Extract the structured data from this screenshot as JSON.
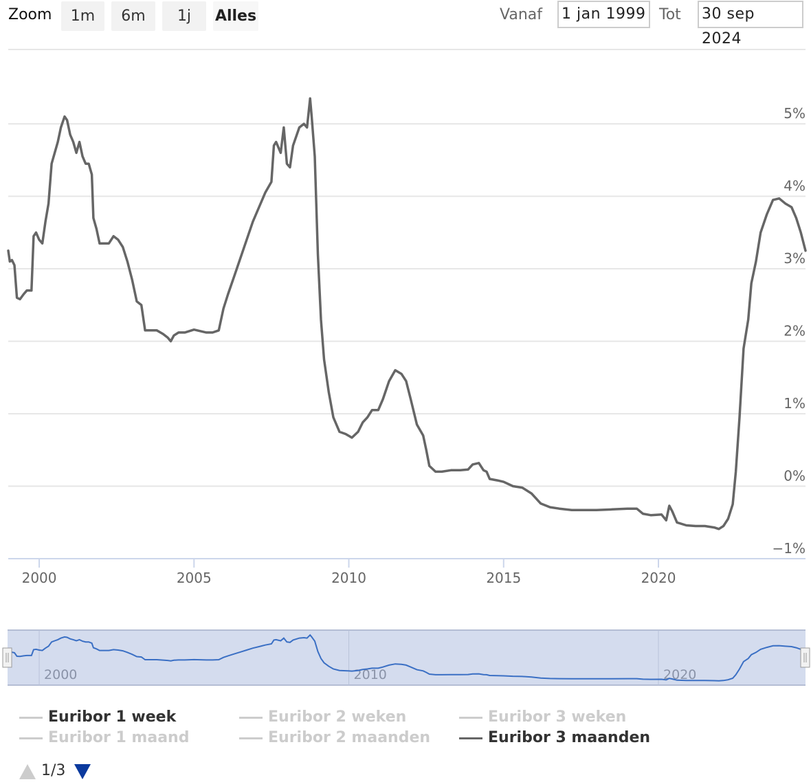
{
  "toolbar": {
    "zoom_label": "Zoom",
    "zoom_buttons": [
      "1m",
      "6m",
      "1j",
      "Alles"
    ],
    "active_zoom": "Alles",
    "from_label": "Vanaf",
    "from_value": "1 jan 1999",
    "to_label": "Tot",
    "to_value": "30 sep 2024"
  },
  "chart_data": {
    "type": "line",
    "series": [
      {
        "name": "Euribor 3 maanden",
        "color": "#666666",
        "points": [
          [
            1999.0,
            3.25
          ],
          [
            1999.05,
            3.1
          ],
          [
            1999.12,
            3.12
          ],
          [
            1999.2,
            3.05
          ],
          [
            1999.28,
            2.6
          ],
          [
            1999.38,
            2.58
          ],
          [
            1999.5,
            2.65
          ],
          [
            1999.6,
            2.7
          ],
          [
            1999.75,
            2.7
          ],
          [
            1999.82,
            3.45
          ],
          [
            1999.9,
            3.5
          ],
          [
            2000.0,
            3.4
          ],
          [
            2000.1,
            3.35
          ],
          [
            2000.2,
            3.65
          ],
          [
            2000.3,
            3.9
          ],
          [
            2000.4,
            4.45
          ],
          [
            2000.5,
            4.6
          ],
          [
            2000.6,
            4.75
          ],
          [
            2000.7,
            4.95
          ],
          [
            2000.82,
            5.1
          ],
          [
            2000.9,
            5.05
          ],
          [
            2001.0,
            4.85
          ],
          [
            2001.1,
            4.75
          ],
          [
            2001.2,
            4.6
          ],
          [
            2001.3,
            4.75
          ],
          [
            2001.4,
            4.55
          ],
          [
            2001.5,
            4.45
          ],
          [
            2001.6,
            4.45
          ],
          [
            2001.7,
            4.3
          ],
          [
            2001.75,
            3.7
          ],
          [
            2001.85,
            3.55
          ],
          [
            2001.95,
            3.35
          ],
          [
            2002.1,
            3.35
          ],
          [
            2002.25,
            3.35
          ],
          [
            2002.4,
            3.45
          ],
          [
            2002.55,
            3.4
          ],
          [
            2002.7,
            3.3
          ],
          [
            2002.85,
            3.1
          ],
          [
            2003.0,
            2.85
          ],
          [
            2003.15,
            2.55
          ],
          [
            2003.3,
            2.5
          ],
          [
            2003.42,
            2.15
          ],
          [
            2003.6,
            2.15
          ],
          [
            2003.8,
            2.15
          ],
          [
            2004.0,
            2.1
          ],
          [
            2004.15,
            2.05
          ],
          [
            2004.25,
            2.0
          ],
          [
            2004.35,
            2.08
          ],
          [
            2004.5,
            2.12
          ],
          [
            2004.7,
            2.12
          ],
          [
            2005.0,
            2.16
          ],
          [
            2005.2,
            2.14
          ],
          [
            2005.4,
            2.12
          ],
          [
            2005.6,
            2.12
          ],
          [
            2005.8,
            2.15
          ],
          [
            2005.95,
            2.45
          ],
          [
            2006.1,
            2.65
          ],
          [
            2006.3,
            2.9
          ],
          [
            2006.5,
            3.15
          ],
          [
            2006.7,
            3.4
          ],
          [
            2006.9,
            3.65
          ],
          [
            2007.1,
            3.85
          ],
          [
            2007.3,
            4.05
          ],
          [
            2007.5,
            4.2
          ],
          [
            2007.58,
            4.7
          ],
          [
            2007.65,
            4.75
          ],
          [
            2007.8,
            4.6
          ],
          [
            2007.9,
            4.95
          ],
          [
            2008.0,
            4.45
          ],
          [
            2008.1,
            4.4
          ],
          [
            2008.2,
            4.7
          ],
          [
            2008.4,
            4.95
          ],
          [
            2008.55,
            5.0
          ],
          [
            2008.65,
            4.95
          ],
          [
            2008.75,
            5.35
          ],
          [
            2008.8,
            5.1
          ],
          [
            2008.9,
            4.55
          ],
          [
            2009.0,
            3.2
          ],
          [
            2009.1,
            2.3
          ],
          [
            2009.2,
            1.75
          ],
          [
            2009.35,
            1.3
          ],
          [
            2009.5,
            0.95
          ],
          [
            2009.7,
            0.75
          ],
          [
            2009.9,
            0.72
          ],
          [
            2010.1,
            0.67
          ],
          [
            2010.3,
            0.75
          ],
          [
            2010.45,
            0.88
          ],
          [
            2010.6,
            0.95
          ],
          [
            2010.75,
            1.05
          ],
          [
            2010.95,
            1.05
          ],
          [
            2011.1,
            1.2
          ],
          [
            2011.3,
            1.45
          ],
          [
            2011.5,
            1.6
          ],
          [
            2011.7,
            1.55
          ],
          [
            2011.85,
            1.45
          ],
          [
            2012.0,
            1.2
          ],
          [
            2012.2,
            0.85
          ],
          [
            2012.4,
            0.7
          ],
          [
            2012.5,
            0.5
          ],
          [
            2012.6,
            0.28
          ],
          [
            2012.8,
            0.2
          ],
          [
            2013.0,
            0.2
          ],
          [
            2013.3,
            0.22
          ],
          [
            2013.6,
            0.22
          ],
          [
            2013.85,
            0.23
          ],
          [
            2014.0,
            0.3
          ],
          [
            2014.2,
            0.32
          ],
          [
            2014.35,
            0.22
          ],
          [
            2014.45,
            0.2
          ],
          [
            2014.55,
            0.1
          ],
          [
            2014.8,
            0.08
          ],
          [
            2015.0,
            0.06
          ],
          [
            2015.3,
            0.0
          ],
          [
            2015.6,
            -0.02
          ],
          [
            2015.9,
            -0.1
          ],
          [
            2016.2,
            -0.24
          ],
          [
            2016.5,
            -0.29
          ],
          [
            2016.8,
            -0.31
          ],
          [
            2017.2,
            -0.33
          ],
          [
            2017.6,
            -0.33
          ],
          [
            2018.0,
            -0.33
          ],
          [
            2018.5,
            -0.32
          ],
          [
            2019.0,
            -0.31
          ],
          [
            2019.3,
            -0.31
          ],
          [
            2019.5,
            -0.38
          ],
          [
            2019.75,
            -0.4
          ],
          [
            2020.1,
            -0.39
          ],
          [
            2020.25,
            -0.47
          ],
          [
            2020.35,
            -0.27
          ],
          [
            2020.45,
            -0.35
          ],
          [
            2020.6,
            -0.5
          ],
          [
            2020.9,
            -0.54
          ],
          [
            2021.2,
            -0.55
          ],
          [
            2021.5,
            -0.55
          ],
          [
            2021.8,
            -0.57
          ],
          [
            2021.95,
            -0.59
          ],
          [
            2022.1,
            -0.55
          ],
          [
            2022.25,
            -0.45
          ],
          [
            2022.4,
            -0.25
          ],
          [
            2022.5,
            0.2
          ],
          [
            2022.62,
            0.95
          ],
          [
            2022.75,
            1.9
          ],
          [
            2022.9,
            2.3
          ],
          [
            2023.0,
            2.8
          ],
          [
            2023.15,
            3.1
          ],
          [
            2023.3,
            3.5
          ],
          [
            2023.5,
            3.75
          ],
          [
            2023.7,
            3.95
          ],
          [
            2023.9,
            3.97
          ],
          [
            2024.1,
            3.9
          ],
          [
            2024.3,
            3.85
          ],
          [
            2024.45,
            3.7
          ],
          [
            2024.6,
            3.5
          ],
          [
            2024.75,
            3.25
          ]
        ]
      }
    ],
    "xlim": [
      1999.0,
      2024.75
    ],
    "ylim": [
      -1,
      5.4
    ],
    "xticks": [
      2000,
      2005,
      2010,
      2015,
      2020
    ],
    "yticks": [
      -1,
      0,
      1,
      2,
      3,
      4,
      5
    ],
    "ytick_labels": [
      "−1%",
      "0%",
      "1%",
      "2%",
      "3%",
      "4%",
      "5%"
    ],
    "xtick_labels": [
      "2000",
      "2005",
      "2010",
      "2015",
      "2020"
    ],
    "navigator_ticks": [
      2000,
      2010,
      2020
    ],
    "navigator_tick_labels": [
      "2000",
      "2010",
      "2020"
    ],
    "grid": true
  },
  "legend": {
    "items": [
      {
        "label": "Euribor 1 week",
        "state": "dark"
      },
      {
        "label": "Euribor 2 weken",
        "state": "hidden"
      },
      {
        "label": "Euribor 3 weken",
        "state": "hidden"
      },
      {
        "label": "Euribor 1 maand",
        "state": "hidden"
      },
      {
        "label": "Euribor 2 maanden",
        "state": "hidden"
      },
      {
        "label": "Euribor 3 maanden",
        "state": "visible"
      }
    ],
    "pager": "1/3"
  },
  "colors": {
    "series": "#666666",
    "grid": "#e6e6e6",
    "navigator_fill": "#d4dcee",
    "navigator_line": "#3a6fc4",
    "pager_arrow": "#0b3a9e"
  }
}
